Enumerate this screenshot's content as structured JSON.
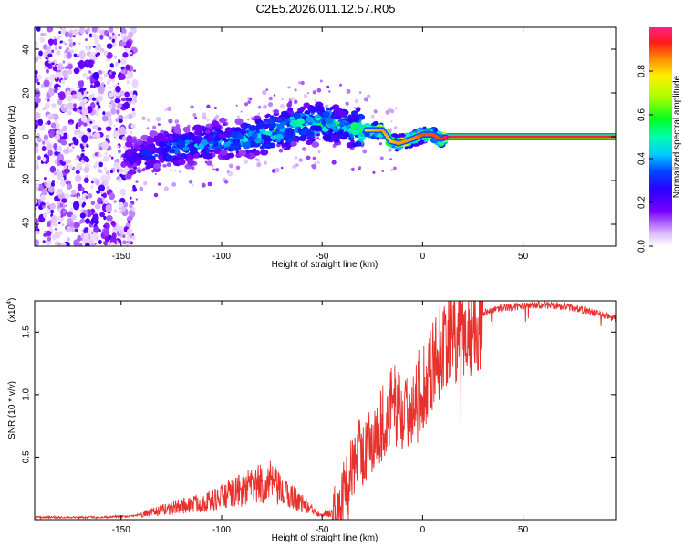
{
  "title": "C2E5.2026.011.12.57.R05",
  "colorbar_label": "Normalized spectral amplitude",
  "colorbar_ticks": [
    "0.0",
    "0.2",
    "0.4",
    "0.6",
    "0.8"
  ],
  "chart_data": [
    {
      "type": "heatmap",
      "panel": "spectrogram",
      "xlabel": "Height of straight line (km)",
      "ylabel": "Frequency (Hz)",
      "xlim": [
        -193,
        96
      ],
      "ylim": [
        -50,
        50
      ],
      "x_ticks": [
        -150,
        -100,
        -50,
        0,
        50
      ],
      "y_ticks": [
        -40,
        -20,
        0,
        20,
        40
      ],
      "colorbar_range": [
        0,
        1
      ],
      "ridge": [
        {
          "x": -145,
          "y": -10,
          "amp": 0.3
        },
        {
          "x": -130,
          "y": -6,
          "amp": 0.38
        },
        {
          "x": -115,
          "y": -4,
          "amp": 0.45
        },
        {
          "x": -100,
          "y": -2,
          "amp": 0.4
        },
        {
          "x": -85,
          "y": 0,
          "amp": 0.5
        },
        {
          "x": -75,
          "y": 2,
          "amp": 0.55
        },
        {
          "x": -60,
          "y": 6,
          "amp": 0.55
        },
        {
          "x": -45,
          "y": 6,
          "amp": 0.6
        },
        {
          "x": -35,
          "y": 4,
          "amp": 0.55
        },
        {
          "x": -28,
          "y": 3,
          "amp": 0.8
        },
        {
          "x": -20,
          "y": 3,
          "amp": 0.85
        },
        {
          "x": -16,
          "y": -2,
          "amp": 0.8
        },
        {
          "x": -12,
          "y": -3,
          "amp": 0.85
        },
        {
          "x": -5,
          "y": -1,
          "amp": 0.85
        },
        {
          "x": 0,
          "y": 1,
          "amp": 0.9
        },
        {
          "x": 5,
          "y": 1,
          "amp": 0.9
        },
        {
          "x": 9,
          "y": -1,
          "amp": 0.9
        },
        {
          "x": 12,
          "y": 0,
          "amp": 1.0
        },
        {
          "x": 96,
          "y": 0,
          "amp": 1.0
        }
      ],
      "noise_region": {
        "x_from": -193,
        "x_to": -143,
        "y_from": -50,
        "y_to": 50
      }
    },
    {
      "type": "line",
      "panel": "snr",
      "xlabel": "Height of straight line (km)",
      "ylabel": "SNR (10 * v/v)",
      "scale_label": "(x10",
      "scale_exp": "4",
      "y_scale": 10000,
      "xlim": [
        -193,
        96
      ],
      "ylim": [
        0,
        1.75
      ],
      "x_ticks": [
        -150,
        -100,
        -50,
        0,
        50
      ],
      "y_ticks": [
        "0.5",
        "1.0",
        "1.5"
      ],
      "color": "#e8302c",
      "series": [
        {
          "name": "SNR",
          "x": [
            -193,
            -160,
            -145,
            -135,
            -125,
            -115,
            -105,
            -95,
            -85,
            -80,
            -75,
            -70,
            -65,
            -60,
            -55,
            -50,
            -45,
            -42,
            -38,
            -35,
            -32,
            -28,
            -25,
            -22,
            -18,
            -15,
            -12,
            -10,
            -8,
            -5,
            -2,
            0,
            3,
            6,
            9,
            12,
            15,
            20,
            25,
            30,
            40,
            50,
            60,
            70,
            80,
            90,
            96
          ],
          "y": [
            0.02,
            0.02,
            0.03,
            0.06,
            0.1,
            0.13,
            0.16,
            0.22,
            0.28,
            0.3,
            0.32,
            0.22,
            0.2,
            0.14,
            0.08,
            0.05,
            0.06,
            0.12,
            0.3,
            0.45,
            0.55,
            0.6,
            0.65,
            0.75,
            0.85,
            0.95,
            0.95,
            0.9,
            0.85,
            1.0,
            1.05,
            1.1,
            1.2,
            1.3,
            1.4,
            1.5,
            1.45,
            1.52,
            1.6,
            1.66,
            1.7,
            1.71,
            1.72,
            1.71,
            1.68,
            1.64,
            1.61
          ]
        }
      ]
    }
  ]
}
